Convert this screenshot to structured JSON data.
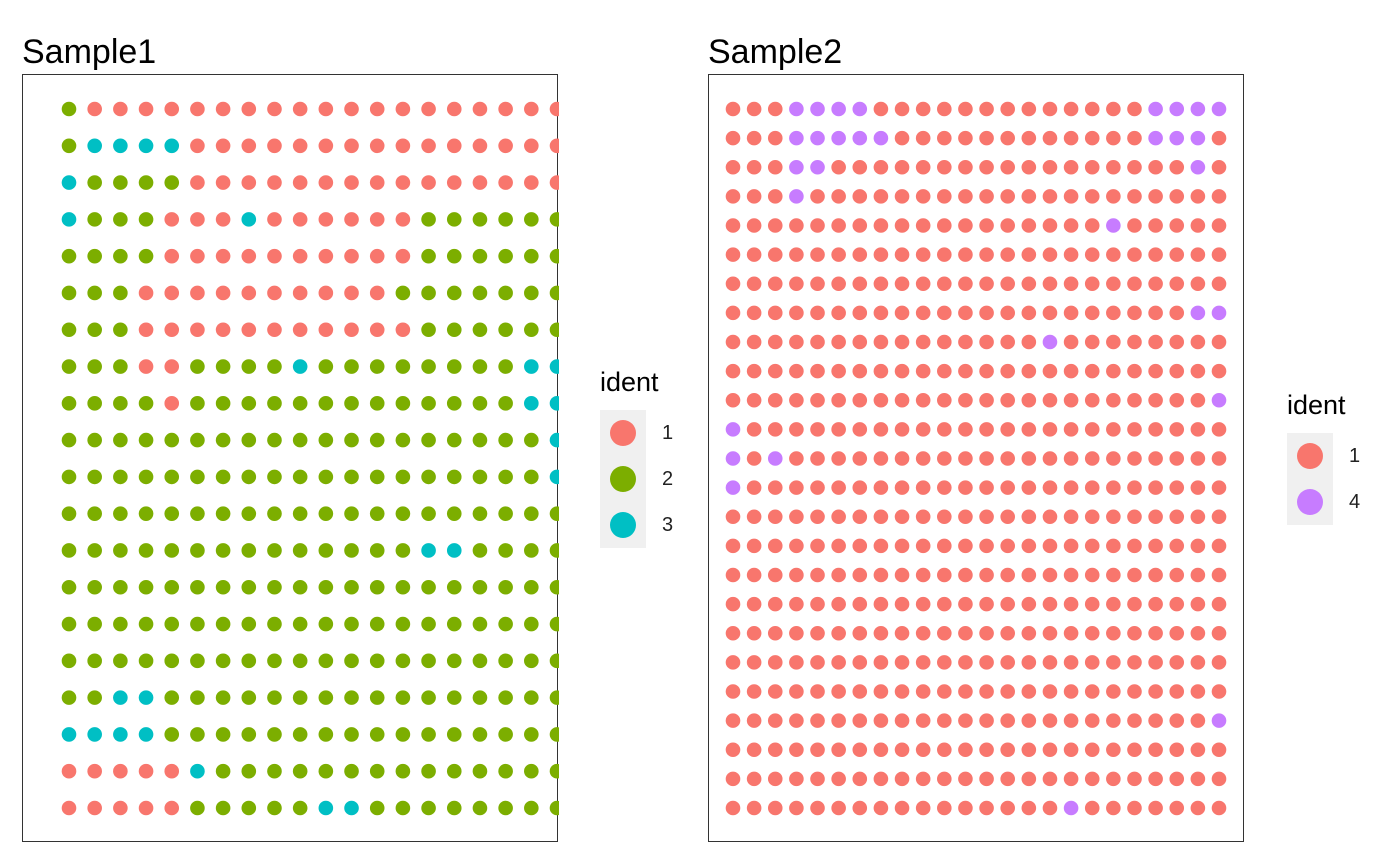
{
  "colors": {
    "1": "#F8766D",
    "2": "#7CAE00",
    "3": "#00BFC4",
    "4": "#C77CFF"
  },
  "chart_data": [
    {
      "type": "scatter",
      "title": "Sample1",
      "legend_title": "ident",
      "legend": [
        "1",
        "2",
        "3"
      ],
      "legend_placement": "right",
      "grid": false,
      "axes": false,
      "rows": [
        "21111111111111111111",
        "23333111111111111111",
        "32222111111111111111",
        "32221113111111222222",
        "22221111111111222222",
        "22211111111112222222",
        "22211111111111222222",
        "22211222232222222233",
        "22221222222222222233",
        "22222222222222222223",
        "22222222222222222223",
        "22222222222222222222",
        "22222222222222332222",
        "22222222222222222222",
        "22222222222222222222",
        "22222222222222222222",
        "22332222222222222222",
        "33332222222222222222",
        "11111322222222222222",
        "11111222223322222222"
      ]
    },
    {
      "type": "scatter",
      "title": "Sample2",
      "legend_title": "ident",
      "legend": [
        "1",
        "4"
      ],
      "legend_placement": "right",
      "grid": false,
      "axes": false,
      "rows": [
        "111444411111111111114444",
        "111444441111111111114441",
        "111441111111111111111141",
        "111411111111111111111111",
        "111111111111111111411111",
        "111111111111111111111111",
        "111111111111111111111111",
        "111111111111111111111144",
        "111111111111111411111111",
        "111111111111111111111111",
        "111111111111111111111114",
        "411111111111111111111111",
        "414111111111111111111111",
        "411111111111111111111111",
        "111111111111111111111111",
        "111111111111111111111111",
        "111111111111111111111111",
        "111111111111111111111111",
        "111111111111111111111111",
        "111111111111111111111111",
        "111111111111111111111111",
        "111111111111111111111114",
        "111111111111111111111111",
        "111111111111111111111111",
        "111111111111111141111111"
      ]
    }
  ]
}
